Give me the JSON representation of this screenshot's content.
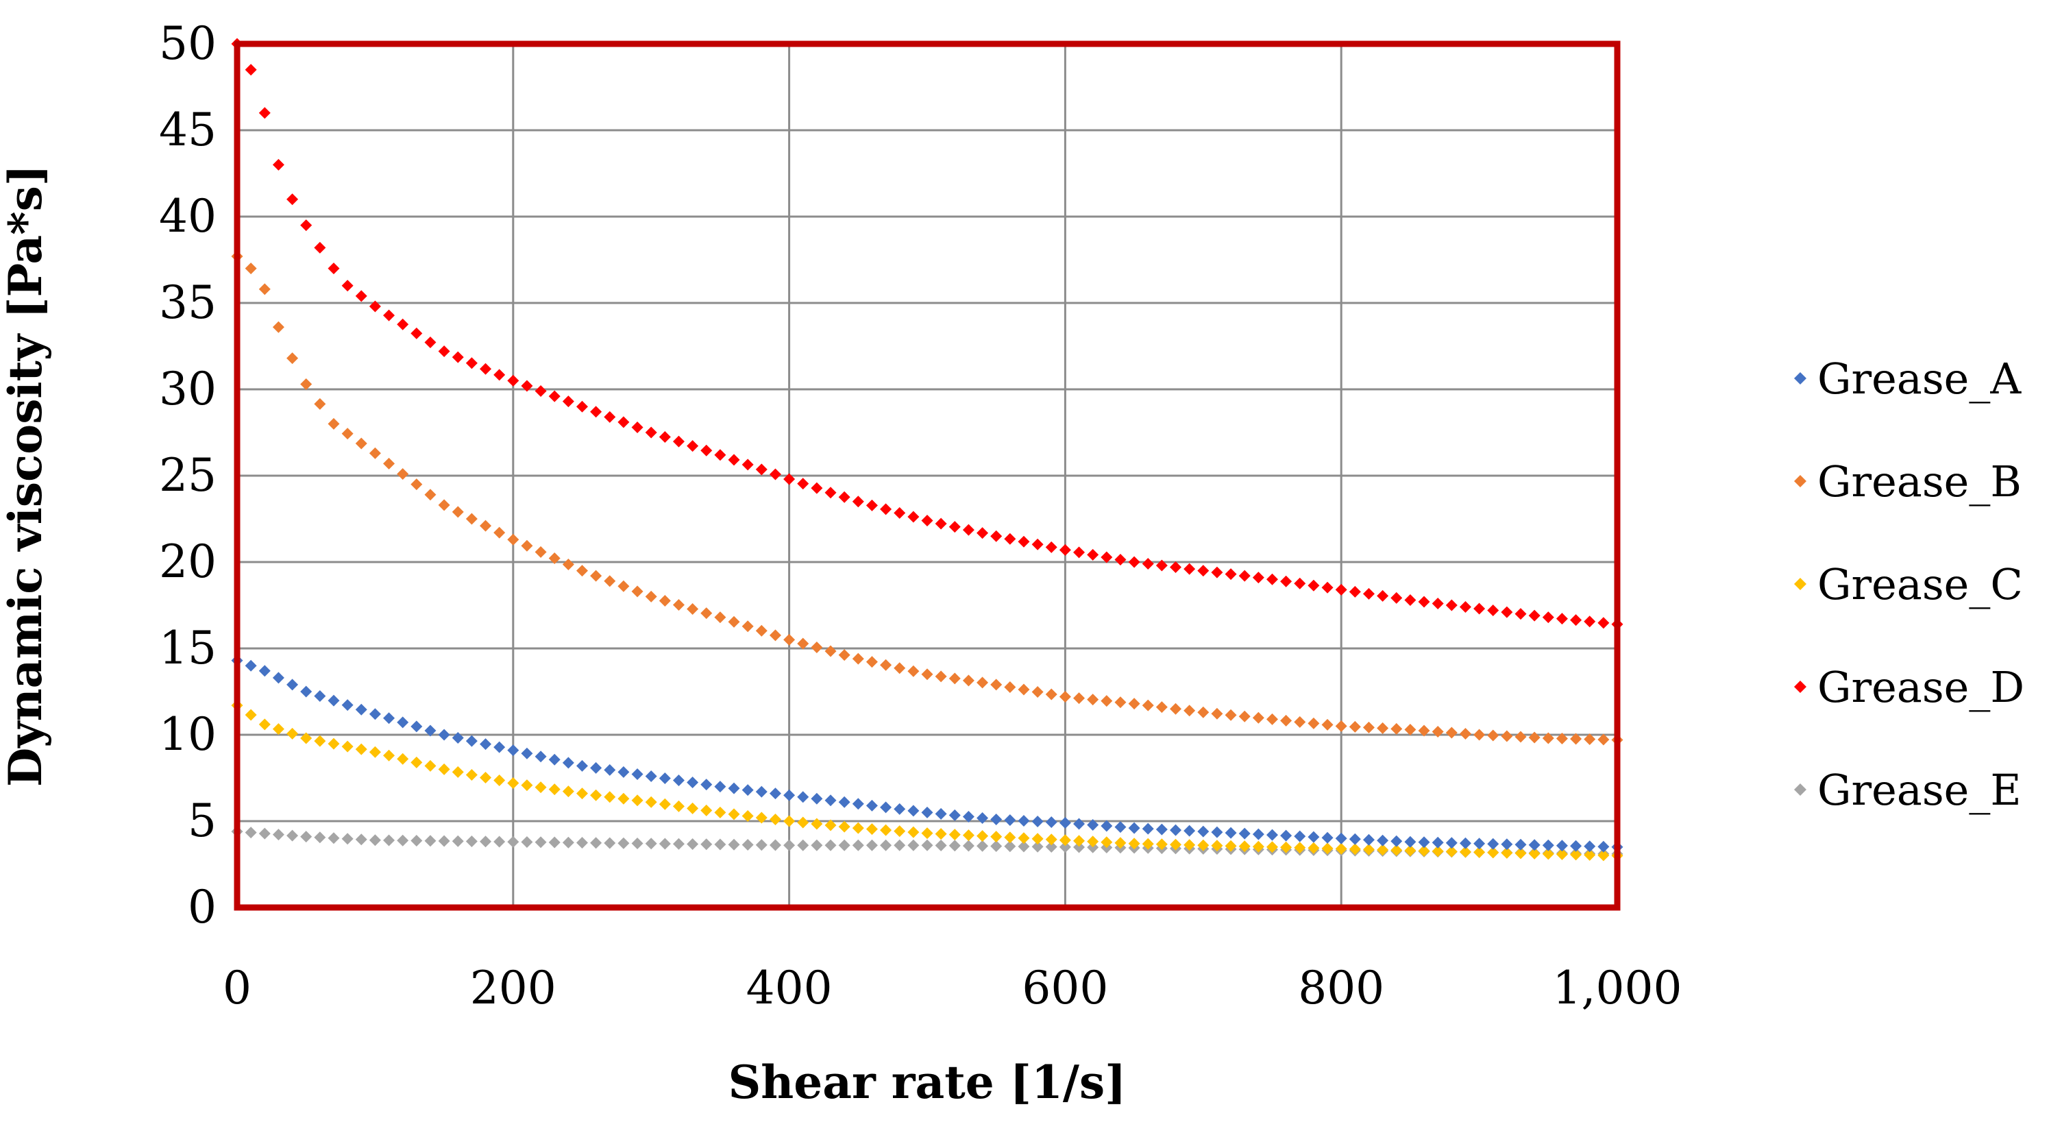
{
  "chart_data": {
    "type": "scatter",
    "title": "",
    "xlabel": "Shear rate [1/s]",
    "ylabel": "Dynamic viscosity [Pa*s]",
    "xlim": [
      0,
      1000
    ],
    "ylim": [
      0,
      50
    ],
    "x_ticks": [
      0,
      200,
      400,
      600,
      800,
      1000
    ],
    "x_tick_labels": [
      "0",
      "200",
      "400",
      "600",
      "800",
      "1,000"
    ],
    "y_ticks": [
      0,
      5,
      10,
      15,
      20,
      25,
      30,
      35,
      40,
      45,
      50
    ],
    "y_tick_labels": [
      "0",
      "5",
      "10",
      "15",
      "20",
      "25",
      "30",
      "35",
      "40",
      "45",
      "50"
    ],
    "grid": true,
    "legend_position": "right",
    "plot_border_color": "#c00000",
    "x_sampling": {
      "start": 0,
      "end": 1000,
      "step": 10
    },
    "series": [
      {
        "name": "Grease_A",
        "color": "#4472c4",
        "keypoints": [
          [
            0,
            14.3
          ],
          [
            20,
            13.7
          ],
          [
            50,
            12.5
          ],
          [
            100,
            11.2
          ],
          [
            150,
            10.0
          ],
          [
            200,
            9.1
          ],
          [
            250,
            8.2
          ],
          [
            300,
            7.6
          ],
          [
            350,
            7.0
          ],
          [
            400,
            6.5
          ],
          [
            450,
            6.0
          ],
          [
            500,
            5.5
          ],
          [
            550,
            5.1
          ],
          [
            600,
            4.9
          ],
          [
            650,
            4.6
          ],
          [
            700,
            4.4
          ],
          [
            750,
            4.2
          ],
          [
            800,
            4.0
          ],
          [
            850,
            3.8
          ],
          [
            900,
            3.7
          ],
          [
            950,
            3.6
          ],
          [
            1000,
            3.5
          ]
        ]
      },
      {
        "name": "Grease_B",
        "color": "#ed7d31",
        "keypoints": [
          [
            0,
            37.7
          ],
          [
            10,
            37.0
          ],
          [
            20,
            35.8
          ],
          [
            30,
            33.6
          ],
          [
            40,
            31.8
          ],
          [
            50,
            30.3
          ],
          [
            70,
            28.0
          ],
          [
            100,
            26.3
          ],
          [
            150,
            23.3
          ],
          [
            200,
            21.3
          ],
          [
            250,
            19.5
          ],
          [
            300,
            18.0
          ],
          [
            350,
            16.8
          ],
          [
            400,
            15.5
          ],
          [
            450,
            14.4
          ],
          [
            500,
            13.5
          ],
          [
            550,
            12.9
          ],
          [
            600,
            12.2
          ],
          [
            650,
            11.8
          ],
          [
            700,
            11.3
          ],
          [
            750,
            10.9
          ],
          [
            800,
            10.5
          ],
          [
            850,
            10.3
          ],
          [
            900,
            10.0
          ],
          [
            950,
            9.8
          ],
          [
            1000,
            9.7
          ]
        ]
      },
      {
        "name": "Grease_C",
        "color": "#ffc000",
        "keypoints": [
          [
            0,
            11.7
          ],
          [
            20,
            10.6
          ],
          [
            50,
            9.8
          ],
          [
            100,
            9.0
          ],
          [
            150,
            8.0
          ],
          [
            200,
            7.2
          ],
          [
            250,
            6.6
          ],
          [
            300,
            6.1
          ],
          [
            350,
            5.5
          ],
          [
            400,
            5.0
          ],
          [
            450,
            4.6
          ],
          [
            500,
            4.3
          ],
          [
            550,
            4.1
          ],
          [
            600,
            3.9
          ],
          [
            650,
            3.7
          ],
          [
            700,
            3.6
          ],
          [
            750,
            3.5
          ],
          [
            800,
            3.4
          ],
          [
            850,
            3.3
          ],
          [
            900,
            3.2
          ],
          [
            950,
            3.1
          ],
          [
            1000,
            3.0
          ]
        ]
      },
      {
        "name": "Grease_D",
        "color": "#ff0000",
        "keypoints": [
          [
            0,
            50.0
          ],
          [
            10,
            48.5
          ],
          [
            20,
            46.0
          ],
          [
            30,
            43.0
          ],
          [
            40,
            41.0
          ],
          [
            50,
            39.5
          ],
          [
            60,
            38.2
          ],
          [
            70,
            37.0
          ],
          [
            80,
            36.0
          ],
          [
            100,
            34.8
          ],
          [
            150,
            32.2
          ],
          [
            200,
            30.5
          ],
          [
            250,
            29.0
          ],
          [
            300,
            27.5
          ],
          [
            350,
            26.2
          ],
          [
            400,
            24.8
          ],
          [
            450,
            23.5
          ],
          [
            500,
            22.4
          ],
          [
            550,
            21.5
          ],
          [
            600,
            20.7
          ],
          [
            650,
            20.0
          ],
          [
            700,
            19.5
          ],
          [
            750,
            19.0
          ],
          [
            800,
            18.4
          ],
          [
            850,
            17.8
          ],
          [
            900,
            17.3
          ],
          [
            950,
            16.8
          ],
          [
            1000,
            16.4
          ]
        ]
      },
      {
        "name": "Grease_E",
        "color": "#a5a5a5",
        "keypoints": [
          [
            0,
            4.4
          ],
          [
            50,
            4.1
          ],
          [
            100,
            3.9
          ],
          [
            200,
            3.8
          ],
          [
            300,
            3.7
          ],
          [
            400,
            3.6
          ],
          [
            500,
            3.6
          ],
          [
            600,
            3.5
          ],
          [
            700,
            3.4
          ],
          [
            800,
            3.3
          ],
          [
            900,
            3.2
          ],
          [
            1000,
            3.1
          ]
        ]
      }
    ]
  }
}
